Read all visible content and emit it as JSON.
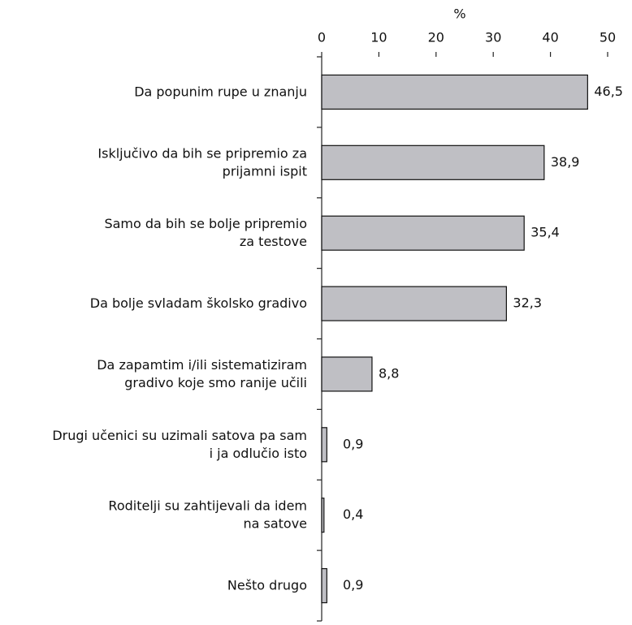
{
  "chart_data": {
    "type": "bar",
    "orientation": "horizontal",
    "title": "%",
    "categories": [
      [
        "Da popunim rupe u znanju"
      ],
      [
        "Isključivo da bih se pripremio za",
        "prijamni ispit"
      ],
      [
        "Samo da bih se bolje pripremio",
        "za testove"
      ],
      [
        "Da bolje svladam školsko gradivo"
      ],
      [
        "Da zapamtim i/ili sistematiziram",
        "gradivo koje smo ranije učili"
      ],
      [
        "Drugi učenici su uzimali satova pa sam",
        "i ja odlučio isto"
      ],
      [
        "Roditelji su zahtijevali da idem",
        "na satove"
      ],
      [
        "Nešto drugo"
      ]
    ],
    "values": [
      46.5,
      38.9,
      35.4,
      32.3,
      8.8,
      0.9,
      0.4,
      0.9
    ],
    "value_labels": [
      "46,5",
      "38,9",
      "35,4",
      "32,3",
      "8,8",
      "0,9",
      "0,4",
      "0,9"
    ],
    "color": "#bfbfc4",
    "xlim": [
      0,
      50
    ],
    "xticks": [
      0,
      10,
      20,
      30,
      40,
      50
    ]
  }
}
